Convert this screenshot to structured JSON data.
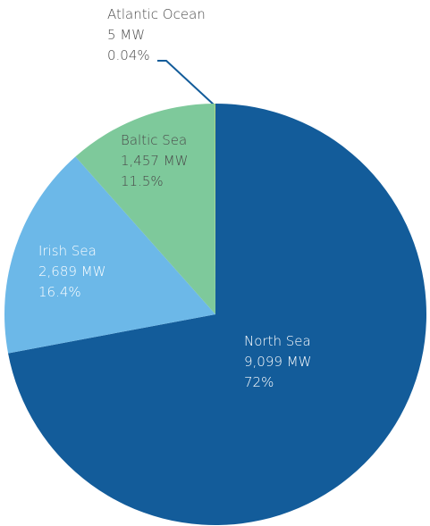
{
  "chart_data": {
    "type": "pie",
    "categories": [
      "North Sea",
      "Irish Sea",
      "Baltic Sea",
      "Atlantic Ocean"
    ],
    "values": [
      72,
      16.4,
      11.5,
      0.04
    ],
    "value_labels": [
      "72%",
      "16.4%",
      "11.5%",
      "0.04%"
    ],
    "capacity_labels": [
      "9,099 MW",
      "2,689 MW",
      "1,457 MW",
      "5 MW"
    ],
    "colors": [
      "#135c9a",
      "#6cb8e8",
      "#7ec99b",
      "#c9d86a"
    ]
  }
}
